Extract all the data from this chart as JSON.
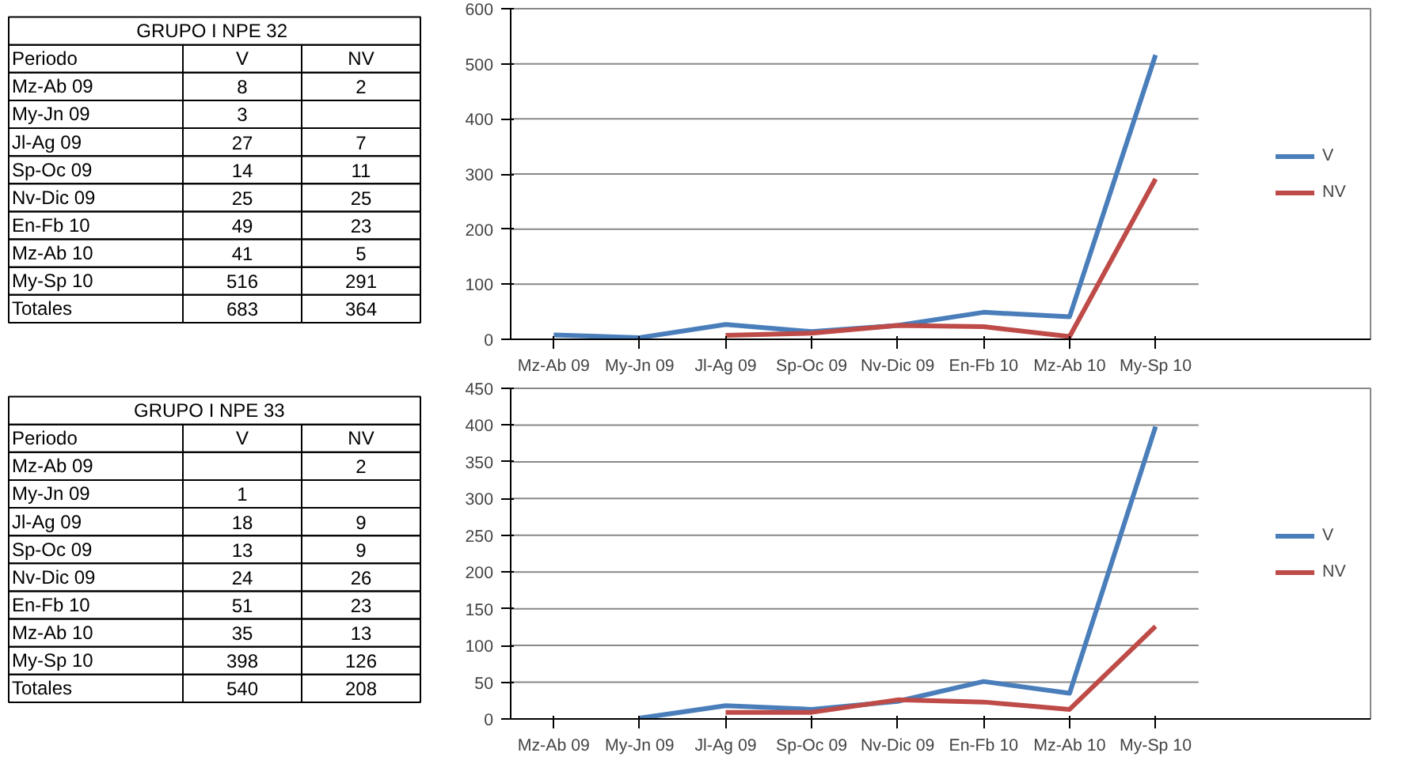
{
  "chart_data": [
    {
      "type": "other",
      "title": "GRUPO I  NPE 32",
      "categories": [
        "Mz-Ab 09",
        "My-Jn 09",
        "Jl-Ag 09",
        "Sp-Oc 09",
        "Nv-Dic 09",
        "En-Fb 10",
        "Mz-Ab 10",
        "My-Sp 10"
      ],
      "series": [
        {
          "name": "V",
          "values": [
            8,
            3,
            27,
            14,
            25,
            49,
            41,
            516
          ]
        },
        {
          "name": "NV",
          "values": [
            2,
            null,
            7,
            11,
            25,
            23,
            5,
            291
          ]
        }
      ],
      "data_labels": true,
      "annotations": [
        "Periodo",
        "Totales",
        "683",
        "364"
      ]
    },
    {
      "type": "line",
      "categories": [
        "Mz-Ab 09",
        "My-Jn 09",
        "Jl-Ag 09",
        "Sp-Oc 09",
        "Nv-Dic 09",
        "En-Fb 10",
        "Mz-Ab 10",
        "My-Sp 10"
      ],
      "series": [
        {
          "name": "V",
          "color": "#4a7ebb",
          "values": [
            8,
            3,
            27,
            14,
            25,
            49,
            41,
            516
          ]
        },
        {
          "name": "NV",
          "color": "#be4b48",
          "values": [
            null,
            null,
            7,
            11,
            25,
            23,
            5,
            291
          ]
        }
      ],
      "ylim": [
        0,
        600
      ],
      "yticks": [
        0,
        100,
        200,
        300,
        400,
        500,
        600
      ],
      "grid": "y",
      "legend": "right",
      "line_style": "solid",
      "marker": "none"
    },
    {
      "type": "other",
      "title": "GRUPO I   NPE 33",
      "categories": [
        "Mz-Ab 09",
        "My-Jn 09",
        "Jl-Ag 09",
        "Sp-Oc 09",
        "Nv-Dic 09",
        "En-Fb 10",
        "Mz-Ab 10",
        "My-Sp 10"
      ],
      "series": [
        {
          "name": "V",
          "values": [
            null,
            1,
            18,
            13,
            24,
            51,
            35,
            398
          ]
        },
        {
          "name": "NV",
          "values": [
            2,
            null,
            9,
            9,
            26,
            23,
            13,
            126
          ]
        }
      ],
      "data_labels": true,
      "annotations": [
        "Periodo",
        "Totales",
        "540",
        "208"
      ]
    },
    {
      "type": "line",
      "categories": [
        "Mz-Ab 09",
        "My-Jn 09",
        "Jl-Ag 09",
        "Sp-Oc 09",
        "Nv-Dic 09",
        "En-Fb 10",
        "Mz-Ab 10",
        "My-Sp 10"
      ],
      "series": [
        {
          "name": "V",
          "color": "#4a7ebb",
          "values": [
            null,
            1,
            18,
            13,
            24,
            51,
            35,
            398
          ]
        },
        {
          "name": "NV",
          "color": "#be4b48",
          "values": [
            null,
            null,
            9,
            9,
            26,
            23,
            13,
            126
          ]
        }
      ],
      "ylim": [
        0,
        450
      ],
      "yticks": [
        0,
        50,
        100,
        150,
        200,
        250,
        300,
        350,
        400,
        450
      ],
      "grid": "y",
      "legend": "right",
      "line_style": "solid",
      "marker": "none"
    }
  ]
}
